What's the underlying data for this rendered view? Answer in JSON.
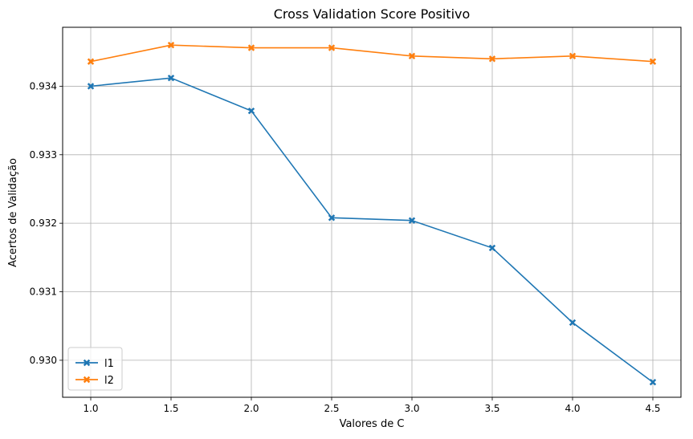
{
  "chart_data": {
    "type": "line",
    "title": "Cross Validation Score Positivo",
    "xlabel": "Valores de C",
    "ylabel": "Acertos de Validação",
    "x": [
      1.0,
      1.5,
      2.0,
      2.5,
      3.0,
      3.5,
      4.0,
      4.5
    ],
    "xticks": [
      "1.0",
      "1.5",
      "2.0",
      "2.5",
      "3.0",
      "3.5",
      "4.0",
      "4.5"
    ],
    "yticks": [
      "0.930",
      "0.931",
      "0.932",
      "0.933",
      "0.934"
    ],
    "xlim": [
      0.825,
      4.675
    ],
    "ylim": [
      0.92946,
      0.93486
    ],
    "grid": true,
    "legend_position": "lower-left",
    "marker": "X",
    "series": [
      {
        "name": "l1",
        "color": "#1f77b4",
        "values": [
          0.934,
          0.93412,
          0.93364,
          0.93208,
          0.93204,
          0.93164,
          0.93055,
          0.92968
        ]
      },
      {
        "name": "l2",
        "color": "#ff7f0e",
        "values": [
          0.93436,
          0.9346,
          0.93456,
          0.93456,
          0.93444,
          0.9344,
          0.93444,
          0.93436
        ]
      }
    ]
  }
}
